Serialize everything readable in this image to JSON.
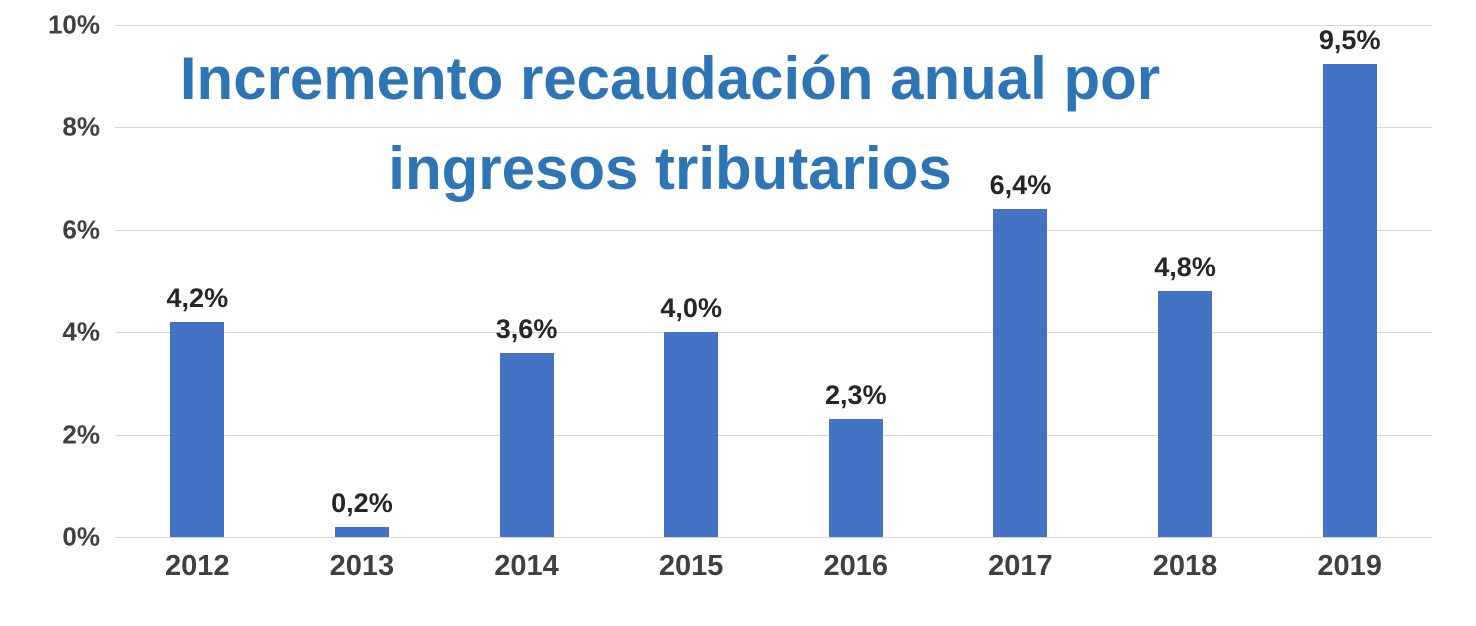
{
  "title": {
    "line1": "Incremento recaudación anual por",
    "line2": "ingresos tributarios"
  },
  "chart_data": {
    "type": "bar",
    "title": "Incremento recaudación anual por ingresos tributarios",
    "categories": [
      "2012",
      "2013",
      "2014",
      "2015",
      "2016",
      "2017",
      "2018",
      "2019"
    ],
    "values": [
      4.2,
      0.2,
      3.6,
      4.0,
      2.3,
      6.4,
      4.8,
      9.5
    ],
    "data_labels": [
      "4,2%",
      "0,2%",
      "3,6%",
      "4,0%",
      "2,3%",
      "6,4%",
      "4,8%",
      "9,5%"
    ],
    "y_ticks": [
      0,
      2,
      4,
      6,
      8,
      10
    ],
    "y_tick_labels": [
      "0%",
      "2%",
      "4%",
      "6%",
      "8%",
      "10%"
    ],
    "ylim": [
      0,
      10
    ],
    "xlabel": "",
    "ylabel": "",
    "grid": true,
    "legend": "none",
    "bar_color": "#4472C4",
    "title_color": "#2E75B6",
    "gridline_color": "#D6D6D6"
  }
}
